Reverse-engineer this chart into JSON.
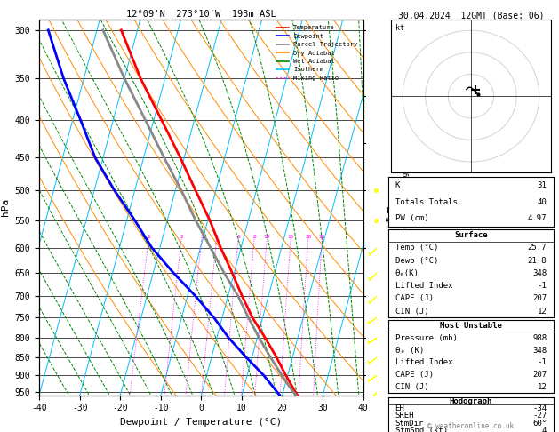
{
  "title_left": "12°09'N  273°10'W  193m ASL",
  "title_right": "30.04.2024  12GMT (Base: 06)",
  "xlabel": "Dewpoint / Temperature (°C)",
  "ylabel_left": "hPa",
  "pressure_ticks": [
    300,
    350,
    400,
    450,
    500,
    550,
    600,
    650,
    700,
    750,
    800,
    850,
    900,
    950
  ],
  "skew_factor": 0.6,
  "isotherm_color": "#00bfff",
  "dry_adiabat_color": "#ff8c00",
  "wet_adiabat_color": "#008800",
  "mixing_ratio_color": "#ff00ff",
  "mixing_ratio_values": [
    1,
    2,
    3,
    4,
    6,
    8,
    10,
    15,
    20,
    25
  ],
  "mixing_ratio_label_pressure": 580,
  "km_ticks": [
    1,
    2,
    3,
    4,
    5,
    6,
    7,
    8
  ],
  "km_pressures": [
    900,
    800,
    700,
    600,
    500,
    430,
    370,
    300
  ],
  "lcl_pressure": 950,
  "temperature_profile": {
    "pressure": [
      988,
      950,
      900,
      850,
      800,
      750,
      700,
      650,
      600,
      550,
      500,
      450,
      400,
      350,
      300
    ],
    "temp": [
      25.7,
      23.0,
      19.5,
      16.0,
      12.0,
      7.5,
      3.5,
      -0.5,
      -5.0,
      -9.5,
      -15.0,
      -21.0,
      -28.0,
      -36.0,
      -44.0
    ]
  },
  "dewpoint_profile": {
    "pressure": [
      988,
      950,
      900,
      850,
      800,
      750,
      700,
      650,
      600,
      550,
      500,
      450,
      400,
      350,
      300
    ],
    "temp": [
      21.8,
      18.5,
      14.0,
      8.5,
      3.0,
      -2.0,
      -8.0,
      -15.0,
      -22.0,
      -28.0,
      -35.0,
      -42.0,
      -48.0,
      -55.0,
      -62.0
    ]
  },
  "parcel_profile": {
    "pressure": [
      988,
      950,
      900,
      850,
      800,
      750,
      700,
      650,
      600,
      550,
      500,
      450,
      400,
      350,
      300
    ],
    "temp": [
      25.7,
      22.5,
      18.5,
      14.5,
      10.5,
      6.5,
      2.5,
      -2.5,
      -7.5,
      -13.0,
      -18.5,
      -25.0,
      -32.0,
      -40.0,
      -48.5
    ]
  },
  "temp_color": "#ff0000",
  "dewpoint_color": "#0000ff",
  "parcel_color": "#888888",
  "legend_entries": [
    {
      "label": "Temperature",
      "color": "#ff0000",
      "style": "-"
    },
    {
      "label": "Dewpoint",
      "color": "#0000ff",
      "style": "-"
    },
    {
      "label": "Parcel Trajectory",
      "color": "#888888",
      "style": "-"
    },
    {
      "label": "Dry Adiabat",
      "color": "#ff8c00",
      "style": "-"
    },
    {
      "label": "Wet Adiabat",
      "color": "#008800",
      "style": "-"
    },
    {
      "label": "Isotherm",
      "color": "#00bfff",
      "style": "-"
    },
    {
      "label": "Mixing Ratio",
      "color": "#ff00ff",
      "style": ":"
    }
  ],
  "stats": {
    "K": 31,
    "Totals_Totals": 40,
    "PW_cm": 4.97,
    "surface_temp": 25.7,
    "surface_dewp": 21.8,
    "surface_theta_e": 348,
    "surface_lifted_index": -1,
    "surface_CAPE": 207,
    "surface_CIN": 12,
    "mu_pressure": 988,
    "mu_theta_e": 348,
    "mu_lifted_index": -1,
    "mu_CAPE": 207,
    "mu_CIN": 12,
    "EH": -34,
    "SREH": -27,
    "StmDir": 60,
    "StmSpd": 4
  },
  "wind_barbs": [
    {
      "pressure": 988,
      "u": 2,
      "v": 3
    },
    {
      "pressure": 950,
      "u": 3,
      "v": 4
    },
    {
      "pressure": 900,
      "u": 4,
      "v": 3
    },
    {
      "pressure": 850,
      "u": 5,
      "v": 4
    },
    {
      "pressure": 800,
      "u": 6,
      "v": 4
    },
    {
      "pressure": 750,
      "u": 4,
      "v": 3
    },
    {
      "pressure": 700,
      "u": 3,
      "v": 3
    },
    {
      "pressure": 650,
      "u": 2,
      "v": 2
    },
    {
      "pressure": 600,
      "u": 2,
      "v": 2
    },
    {
      "pressure": 550,
      "u": 1,
      "v": 2
    },
    {
      "pressure": 500,
      "u": 1,
      "v": 1
    }
  ],
  "hodograph_circles": [
    10,
    20,
    30
  ],
  "hodograph_u": [
    -2,
    -1,
    0,
    1,
    2,
    3
  ],
  "hodograph_v": [
    3,
    4,
    4,
    3,
    2,
    1
  ],
  "background_color": "#ffffff",
  "font_family": "monospace"
}
